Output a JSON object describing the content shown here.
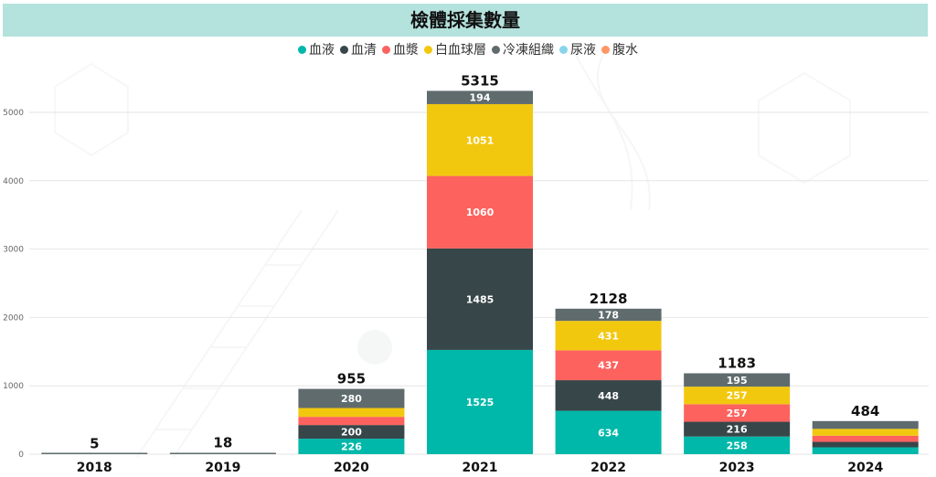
{
  "title": "檢體採集數量",
  "colors": {
    "title_bg": "#b4e2dd",
    "grid": "#e6e6e6",
    "axis_text": "#666666",
    "bar_text": "#ffffff",
    "total_text": "#111111"
  },
  "chart_data": {
    "type": "bar",
    "stacked": true,
    "title": "檢體採集數量",
    "categories": [
      "2018",
      "2019",
      "2020",
      "2021",
      "2022",
      "2023",
      "2024"
    ],
    "totals": [
      5,
      18,
      955,
      5315,
      2128,
      1183,
      484
    ],
    "ylim": [
      0,
      5500
    ],
    "yticks": [
      0,
      1000,
      2000,
      3000,
      4000,
      5000
    ],
    "grid": true,
    "legend_position": "top-center",
    "series": [
      {
        "name": "血液",
        "color": "#00b8aa",
        "values": [
          0,
          0,
          226,
          1525,
          634,
          258,
          100
        ],
        "labels": [
          "",
          "",
          "226",
          "1525",
          "634",
          "258",
          ""
        ]
      },
      {
        "name": "血清",
        "color": "#374649",
        "values": [
          0,
          0,
          200,
          1485,
          448,
          216,
          80
        ],
        "labels": [
          "",
          "",
          "200",
          "1485",
          "448",
          "216",
          ""
        ]
      },
      {
        "name": "血漿",
        "color": "#fd625e",
        "values": [
          0,
          0,
          120,
          1060,
          437,
          257,
          90
        ],
        "labels": [
          "",
          "",
          "",
          "1060",
          "437",
          "257",
          ""
        ]
      },
      {
        "name": "白血球層",
        "color": "#f2c80f",
        "values": [
          0,
          0,
          129,
          1051,
          431,
          257,
          100
        ],
        "labels": [
          "",
          "",
          "",
          "1051",
          "431",
          "257",
          ""
        ]
      },
      {
        "name": "冷凍組織",
        "color": "#5f6b6d",
        "values": [
          5,
          18,
          280,
          194,
          178,
          195,
          114
        ],
        "labels": [
          "",
          "",
          "280",
          "194",
          "178",
          "195",
          ""
        ]
      },
      {
        "name": "尿液",
        "color": "#8ad4eb",
        "values": [
          0,
          0,
          0,
          0,
          0,
          0,
          0
        ],
        "labels": [
          "",
          "",
          "",
          "",
          "",
          "",
          ""
        ]
      },
      {
        "name": "腹水",
        "color": "#fe9666",
        "values": [
          0,
          0,
          0,
          0,
          0,
          0,
          0
        ],
        "labels": [
          "",
          "",
          "",
          "",
          "",
          "",
          ""
        ]
      }
    ]
  }
}
